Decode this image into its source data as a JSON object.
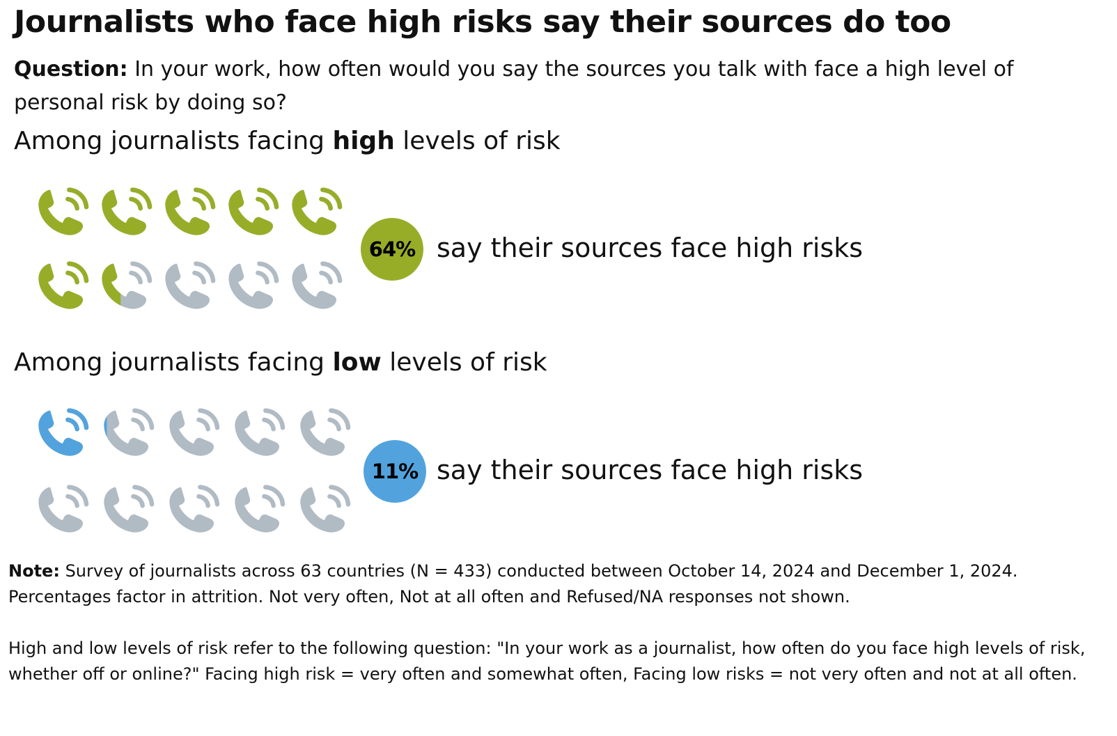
{
  "title": "Journalists who face high risks say their sources do too",
  "question": {
    "label": "Question:",
    "text": "In your work, how often would you say the sources you talk with face a high level of personal risk by doing so?"
  },
  "sections": [
    {
      "heading_before": "Among journalists facing",
      "heading_bold": "high",
      "heading_after": "levels of risk",
      "percent_label": "64%",
      "statement": "say their sources face high risks"
    },
    {
      "heading_before": "Among journalists facing",
      "heading_bold": "low",
      "heading_after": "levels of risk",
      "percent_label": "11%",
      "statement": "say their sources face high risks"
    }
  ],
  "note": {
    "label": "Note:",
    "text": "Survey of journalists across 63 countries (N = 433) conducted between October 14, 2024 and December 1, 2024. Percentages factor in attrition. Not very often, Not at all often and Refused/NA responses not shown.",
    "paragraph2": "High and low levels of risk refer to the following question: \"In your work as a journalist, how often do you face high levels of risk, whether off or online?\" Facing high risk = very often and somewhat often, Facing low risks = not very often and not at all often."
  },
  "chart_data": [
    {
      "type": "pictogram",
      "icon": "phone-icon",
      "icon_count": 10,
      "value": 64,
      "unit": "%",
      "fill_color": "#97ad28",
      "empty_color": "#b0bbc4"
    },
    {
      "type": "pictogram",
      "icon": "phone-icon",
      "icon_count": 10,
      "value": 11,
      "unit": "%",
      "fill_color": "#52a3dd",
      "empty_color": "#b0bbc4"
    }
  ]
}
